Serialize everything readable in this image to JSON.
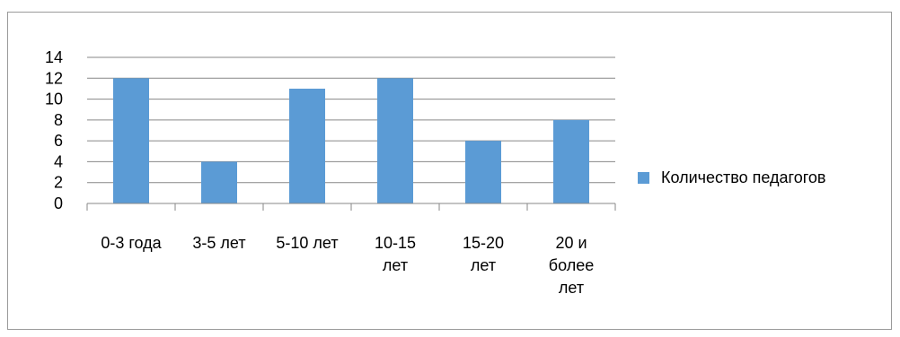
{
  "chart_data": {
    "type": "bar",
    "categories": [
      "0-3 года",
      "3-5 лет",
      "5-10 лет",
      "10-15 лет",
      "15-20 лет",
      "20 и более лет"
    ],
    "category_lines": [
      [
        "0-3 года"
      ],
      [
        "3-5 лет"
      ],
      [
        "5-10 лет"
      ],
      [
        "10-15",
        "лет"
      ],
      [
        "15-20",
        "лет"
      ],
      [
        "20 и",
        "более",
        "лет"
      ]
    ],
    "series": [
      {
        "name": "Количество педагогов",
        "values": [
          12,
          4,
          11,
          12,
          6,
          8
        ]
      }
    ],
    "ylim": [
      0,
      14
    ],
    "yticks": [
      0,
      2,
      4,
      6,
      8,
      10,
      12,
      14
    ],
    "grid": true,
    "legend_position": "right",
    "bar_color": "#5B9BD5",
    "grid_color": "#878787"
  }
}
